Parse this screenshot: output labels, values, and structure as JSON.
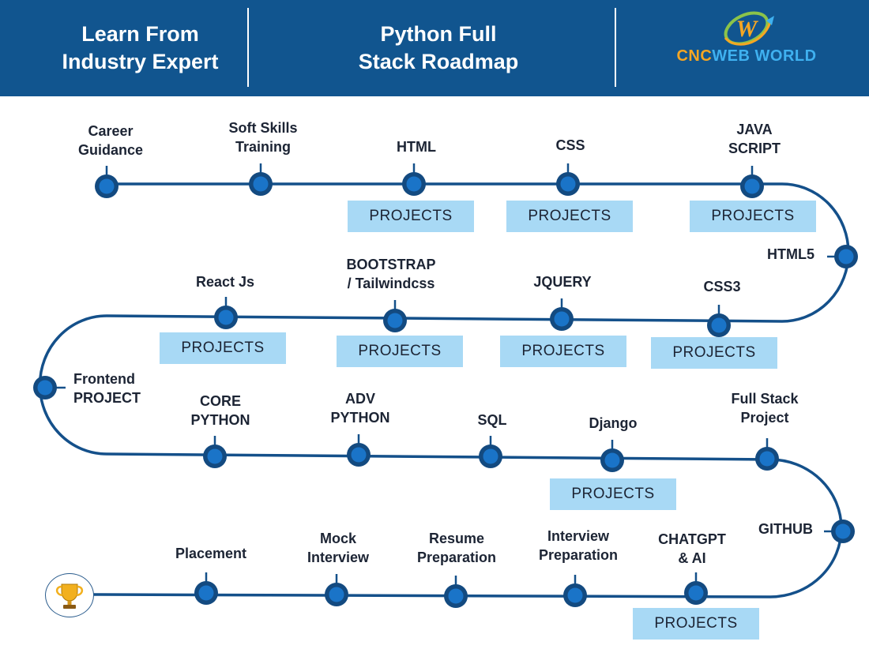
{
  "header": {
    "left_title": "Learn From\nIndustry Expert",
    "center_title": "Python Full\nStack Roadmap",
    "logo": {
      "part1": "CNC",
      "part2": "WEB",
      "part3": "WORLD",
      "mark": "W"
    }
  },
  "colors": {
    "header_bg": "#11558f",
    "track": "#14508a",
    "node_fill": "#1a74c8",
    "node_ring": "#134a80",
    "project_box": "#a8d9f5",
    "text": "#1c2434"
  },
  "icons": {
    "finish": "trophy-icon"
  },
  "steps": [
    {
      "label": "Career\nGuidance"
    },
    {
      "label": "Soft Skills\nTraining"
    },
    {
      "label": "HTML"
    },
    {
      "label": "CSS"
    },
    {
      "label": "JAVA\nSCRIPT"
    },
    {
      "label": "HTML5"
    },
    {
      "label": "CSS3"
    },
    {
      "label": "JQUERY"
    },
    {
      "label": "BOOTSTRAP\n/ Tailwindcss"
    },
    {
      "label": "React Js"
    },
    {
      "label": "Frontend\nPROJECT"
    },
    {
      "label": "CORE\nPYTHON"
    },
    {
      "label": "ADV\nPYTHON"
    },
    {
      "label": "SQL"
    },
    {
      "label": "Django"
    },
    {
      "label": "Full Stack\nProject"
    },
    {
      "label": "GITHUB"
    },
    {
      "label": "CHATGPT\n& AI"
    },
    {
      "label": "Interview\nPreparation"
    },
    {
      "label": "Resume\nPreparation"
    },
    {
      "label": "Mock\nInterview"
    },
    {
      "label": "Placement"
    }
  ],
  "project_label": "PROJECTS"
}
